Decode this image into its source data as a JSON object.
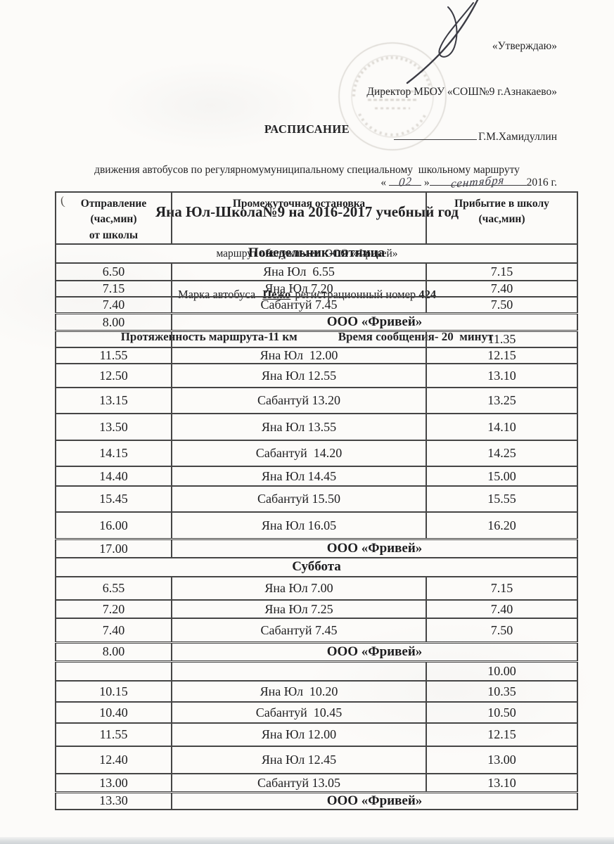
{
  "approval": {
    "approve_word": "«Утверждаю»",
    "director_line": "Директор МБОУ «СОШ№9 г.Азнакаево»",
    "director_name": "Г.М.Хамидуллин",
    "date_quote_open": "«",
    "date_day_handwritten": "02",
    "date_quote_close": "»",
    "date_month_handwritten": "сентября",
    "date_year": "2016 г."
  },
  "title": {
    "heading": "РАСПИСАНИЕ",
    "subtitle": "движения автобусов по регулярномумуниципальному специальному  школьному маршруту",
    "route_line": "Яна Юл-Школа№9 на 2016-2017 учебный год",
    "operator_line": "маршрут обслуживает  ООО «Фривей»",
    "bus_prefix": "Марка автобуса",
    "bus_brand": "Пежо",
    "bus_middle": "регистрационный номер",
    "bus_number": "424",
    "length_line": "Протяженность маршрута-11 км",
    "time_line": "Время сообщения- 20  минут"
  },
  "table": {
    "columns": [
      "Отправление\n(час,мин)\nот школы",
      "Промежуточная остановка",
      "Прибытие в школу\n(час,мин)"
    ],
    "sections": [
      {
        "title": "Понедельник-пятница",
        "rows": [
          {
            "dep": "6.50",
            "stop": "Яна Юл  6.55",
            "arr": "7.15"
          },
          {
            "dep": "7.15",
            "stop": "Яна Юл 7.20",
            "arr": "7.40"
          },
          {
            "dep": "7.40",
            "stop": "Сабантуй 7.45",
            "arr": "7.50"
          },
          {
            "dep": "8.00",
            "stop": "ООО «Фривей»",
            "arr": "",
            "span": true
          },
          {
            "dep": "",
            "stop": "",
            "arr": "11.35"
          },
          {
            "dep": "11.55",
            "stop": "Яна Юл  12.00",
            "arr": "12.15"
          },
          {
            "dep": "12.50",
            "stop": "Яна Юл 12.55",
            "arr": "13.10"
          },
          {
            "dep": "13.15",
            "stop": "Сабантуй 13.20",
            "arr": "13.25"
          },
          {
            "dep": "13.50",
            "stop": "Яна Юл 13.55",
            "arr": "14.10"
          },
          {
            "dep": "14.15",
            "stop": "Сабантуй  14.20",
            "arr": "14.25"
          },
          {
            "dep": "14.40",
            "stop": "Яна Юл 14.45",
            "arr": "15.00"
          },
          {
            "dep": "15.45",
            "stop": "Сабантуй 15.50",
            "arr": "15.55"
          },
          {
            "dep": "16.00",
            "stop": "Яна Юл 16.05",
            "arr": "16.20"
          },
          {
            "dep": "17.00",
            "stop": "ООО «Фривей»",
            "arr": "",
            "span": true
          }
        ]
      },
      {
        "title": "Суббота",
        "rows": [
          {
            "dep": "6.55",
            "stop": "Яна Юл 7.00",
            "arr": "7.15"
          },
          {
            "dep": "7.20",
            "stop": "Яна Юл 7.25",
            "arr": "7.40"
          },
          {
            "dep": "7.40",
            "stop": "Сабантуй 7.45",
            "arr": "7.50"
          },
          {
            "dep": "8.00",
            "stop": "ООО «Фривей»",
            "arr": "",
            "span": true
          },
          {
            "dep": "",
            "stop": "",
            "arr": "10.00"
          },
          {
            "dep": "10.15",
            "stop": "Яна Юл  10.20",
            "arr": "10.35"
          },
          {
            "dep": "10.40",
            "stop": "Сабантуй  10.45",
            "arr": "10.50"
          },
          {
            "dep": "11.55",
            "stop": "Яна Юл 12.00",
            "arr": "12.15"
          },
          {
            "dep": "12.40",
            "stop": "Яна Юл 12.45",
            "arr": "13.00"
          },
          {
            "dep": "13.00",
            "stop": "Сабантуй 13.05",
            "arr": "13.10"
          },
          {
            "dep": "13.30",
            "stop": "ООО «Фривей»",
            "arr": "",
            "span": true
          }
        ]
      }
    ]
  }
}
